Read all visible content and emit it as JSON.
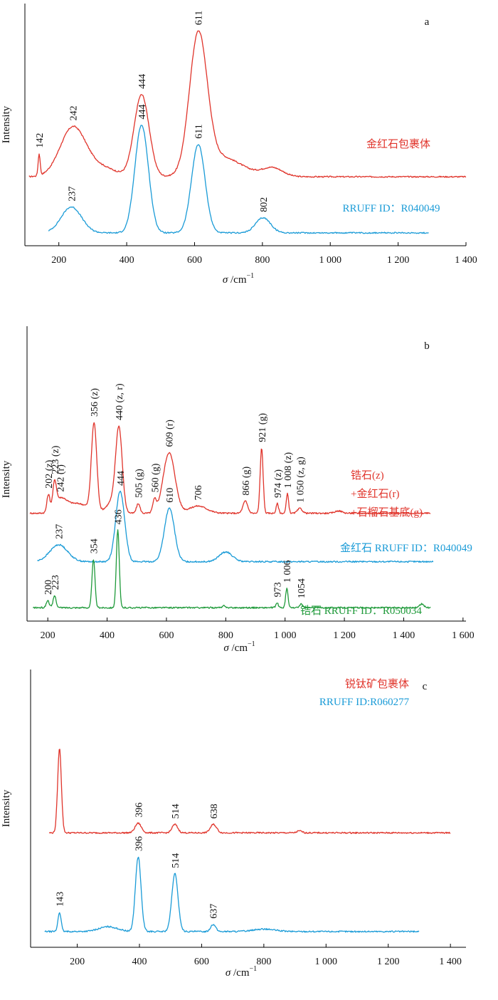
{
  "colors": {
    "red": "#e0342b",
    "blue": "#1a9bd7",
    "green": "#1f9a3a"
  },
  "chart_data": [
    {
      "type": "line",
      "panel_label": "a",
      "ylabel": "Intensity",
      "xlabel_symbol": "σ",
      "xlabel_unit": "/cm",
      "xlabel_exp": "−1",
      "xlim": [
        100,
        1400
      ],
      "xticks": [
        200,
        400,
        600,
        800,
        1000,
        1200,
        1400
      ],
      "xtick_labels": [
        "200",
        "400",
        "600",
        "800",
        "1 000",
        "1 200",
        "1 400"
      ],
      "series": [
        {
          "name": "金红石包裹体",
          "color": "#e0342b",
          "baseline": 0.28,
          "x_start": 112,
          "x_end": 1400,
          "peaks": [
            [
              142,
              0.1,
              3
            ],
            [
              242,
              0.23,
              38
            ],
            [
              444,
              0.38,
              22
            ],
            [
              611,
              0.63,
              26
            ],
            [
              330,
              0.04,
              40
            ],
            [
              680,
              0.09,
              60
            ],
            [
              830,
              0.04,
              30
            ]
          ],
          "labels": [
            {
              "x": 142,
              "text": "142"
            },
            {
              "x": 242,
              "text": "242"
            },
            {
              "x": 444,
              "text": "444"
            },
            {
              "x": 611,
              "text": "611"
            }
          ]
        },
        {
          "name": "RRUFF ID：R040049",
          "color": "#1a9bd7",
          "baseline": 0.02,
          "x_start": 170,
          "x_end": 1290,
          "peaks": [
            [
              237,
              0.12,
              30
            ],
            [
              444,
              0.5,
              20
            ],
            [
              611,
              0.41,
              20
            ],
            [
              802,
              0.07,
              22
            ]
          ],
          "labels": [
            {
              "x": 237,
              "text": "237"
            },
            {
              "x": 444,
              "text": "444"
            },
            {
              "x": 611,
              "text": "611"
            },
            {
              "x": 802,
              "text": "802"
            }
          ]
        }
      ]
    },
    {
      "type": "line",
      "panel_label": "b",
      "ylabel": "Intensity",
      "xlabel_symbol": "σ",
      "xlabel_unit": "/cm",
      "xlabel_exp": "−1",
      "xlim": [
        130,
        1610
      ],
      "xticks": [
        200,
        400,
        600,
        800,
        1000,
        1200,
        1400,
        1600
      ],
      "xtick_labels": [
        "200",
        "400",
        "600",
        "800",
        "1 000",
        "1 200",
        "1 400",
        "1 600"
      ],
      "series": [
        {
          "name_lines": [
            "锆石(z)",
            "+金红石(r)",
            "+石榴石基底(g)"
          ],
          "color": "#e0342b",
          "baseline": 0.41,
          "x_start": 140,
          "x_end": 1490,
          "peaks": [
            [
              202,
              0.07,
              5
            ],
            [
              223,
              0.1,
              6
            ],
            [
              242,
              0.05,
              20
            ],
            [
              300,
              0.04,
              40
            ],
            [
              356,
              0.36,
              9
            ],
            [
              420,
              0.05,
              20
            ],
            [
              440,
              0.33,
              11
            ],
            [
              505,
              0.04,
              6
            ],
            [
              560,
              0.05,
              6
            ],
            [
              609,
              0.25,
              20
            ],
            [
              706,
              0.03,
              30
            ],
            [
              866,
              0.05,
              8
            ],
            [
              921,
              0.27,
              5
            ],
            [
              974,
              0.04,
              4
            ],
            [
              1008,
              0.08,
              4
            ],
            [
              1050,
              0.02,
              8
            ],
            [
              1180,
              0.01,
              12
            ]
          ],
          "labels": [
            {
              "x": 202,
              "text": "202 (z)"
            },
            {
              "x": 223,
              "text": "223 (z)"
            },
            {
              "x": 242,
              "text": "242 (r)"
            },
            {
              "x": 356,
              "text": "356 (z)"
            },
            {
              "x": 440,
              "text": "440 (z, r)"
            },
            {
              "x": 505,
              "text": "505 (g)"
            },
            {
              "x": 560,
              "text": "560 (g)"
            },
            {
              "x": 609,
              "text": "609 (r)"
            },
            {
              "x": 706,
              "text": "706"
            },
            {
              "x": 866,
              "text": "866 (g)"
            },
            {
              "x": 921,
              "text": "921 (g)"
            },
            {
              "x": 974,
              "text": "974 (z)"
            },
            {
              "x": 1008,
              "text": "1 008 (z)"
            },
            {
              "x": 1050,
              "text": "1 050 (z, g)"
            }
          ]
        },
        {
          "name": "金红石  RRUFF  ID：R040049",
          "color": "#1a9bd7",
          "baseline": 0.21,
          "x_start": 165,
          "x_end": 1500,
          "peaks": [
            [
              237,
              0.07,
              30
            ],
            [
              444,
              0.29,
              15
            ],
            [
              610,
              0.22,
              17
            ],
            [
              800,
              0.04,
              22
            ]
          ],
          "labels": [
            {
              "x": 237,
              "text": "237"
            },
            {
              "x": 444,
              "text": "444"
            },
            {
              "x": 610,
              "text": "610"
            }
          ]
        },
        {
          "name": "锆石  RRUFF  ID：R050034",
          "color": "#1f9a3a",
          "baseline": 0.02,
          "x_start": 150,
          "x_end": 1490,
          "peaks": [
            [
              200,
              0.03,
              5
            ],
            [
              223,
              0.05,
              5
            ],
            [
              354,
              0.2,
              5
            ],
            [
              436,
              0.32,
              5
            ],
            [
              795,
              0.01,
              4
            ],
            [
              973,
              0.02,
              4
            ],
            [
              1006,
              0.08,
              4
            ],
            [
              1054,
              0.015,
              5
            ],
            [
              1460,
              0.015,
              8
            ]
          ],
          "labels": [
            {
              "x": 200,
              "text": "200"
            },
            {
              "x": 223,
              "text": "223"
            },
            {
              "x": 354,
              "text": "354"
            },
            {
              "x": 436,
              "text": "436"
            },
            {
              "x": 973,
              "text": "973"
            },
            {
              "x": 1006,
              "text": "1 006"
            },
            {
              "x": 1054,
              "text": "1054"
            }
          ]
        }
      ]
    },
    {
      "type": "line",
      "panel_label": "c",
      "ylabel": "Intensity",
      "xlabel_symbol": "σ",
      "xlabel_unit": "/cm",
      "xlabel_exp": "−1",
      "xlim": [
        50,
        1450
      ],
      "xticks": [
        200,
        400,
        600,
        800,
        1000,
        1200,
        1400
      ],
      "xtick_labels": [
        "200",
        "400",
        "600",
        "800",
        "1 000",
        "1 200",
        "1 400"
      ],
      "series": [
        {
          "name": "锐钛矿包裹体",
          "color": "#e0342b",
          "baseline": 0.44,
          "x_start": 110,
          "x_end": 1400,
          "peaks": [
            [
              143,
              0.35,
              6
            ],
            [
              396,
              0.04,
              10
            ],
            [
              514,
              0.035,
              9
            ],
            [
              638,
              0.035,
              10
            ],
            [
              915,
              0.008,
              8
            ]
          ],
          "labels": [
            {
              "x": 396,
              "text": "396"
            },
            {
              "x": 514,
              "text": "514"
            },
            {
              "x": 638,
              "text": "638"
            }
          ]
        },
        {
          "name": "RRUFF ID:R060277",
          "color": "#1a9bd7",
          "baseline": 0.03,
          "x_start": 95,
          "x_end": 1300,
          "peaks": [
            [
              143,
              0.08,
              5
            ],
            [
              300,
              0.02,
              30
            ],
            [
              396,
              0.31,
              9
            ],
            [
              514,
              0.24,
              10
            ],
            [
              637,
              0.03,
              8
            ],
            [
              800,
              0.01,
              35
            ]
          ],
          "labels": [
            {
              "x": 143,
              "text": "143"
            },
            {
              "x": 396,
              "text": "396"
            },
            {
              "x": 514,
              "text": "514"
            },
            {
              "x": 637,
              "text": "637"
            }
          ]
        }
      ]
    }
  ]
}
